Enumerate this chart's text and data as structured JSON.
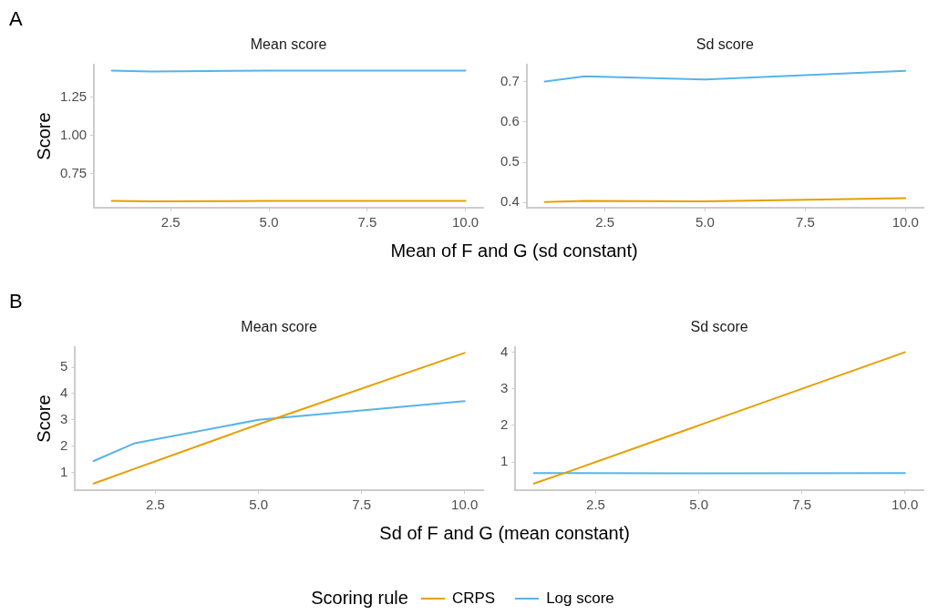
{
  "chart_data": [
    {
      "type": "line",
      "title": "Mean score",
      "xlabel": "Mean of F and G (sd constant)",
      "ylabel": "Score",
      "annotations": [
        "A"
      ],
      "legend": "bottom",
      "legend_title": "Scoring rule",
      "grid": false,
      "marker": "none",
      "line_style": "solid",
      "xlim": [
        0.55,
        10.45
      ],
      "xticks": [
        {
          "value": 2.5,
          "label": "2.5"
        },
        {
          "value": 5,
          "label": "5.0"
        },
        {
          "value": 7.5,
          "label": "7.5"
        },
        {
          "value": 10,
          "label": "10.0"
        }
      ],
      "ylim": [
        0.526,
        1.462
      ],
      "yticks": [
        {
          "value": 0.75,
          "label": "0.75"
        },
        {
          "value": 1,
          "label": "1.00"
        },
        {
          "value": 1.25,
          "label": "1.25"
        }
      ],
      "x": [
        1,
        2,
        5,
        10
      ],
      "series": [
        {
          "name": "CRPS",
          "color": "#e69f00",
          "values": [
            0.571,
            0.567,
            0.571,
            0.571
          ]
        },
        {
          "name": "Log score",
          "color": "#56b4e9",
          "values": [
            1.423,
            1.418,
            1.423,
            1.423
          ]
        }
      ]
    },
    {
      "type": "line",
      "title": "Sd score",
      "grid": false,
      "marker": "none",
      "line_style": "solid",
      "xlim": [
        0.55,
        10.45
      ],
      "xticks": [
        {
          "value": 2.5,
          "label": "2.5"
        },
        {
          "value": 5,
          "label": "5.0"
        },
        {
          "value": 7.5,
          "label": "7.5"
        },
        {
          "value": 10,
          "label": "10.0"
        }
      ],
      "ylim": [
        0.387,
        0.742
      ],
      "yticks": [
        0.4,
        0.5,
        0.6,
        0.7
      ],
      "x": [
        1,
        2,
        5,
        10
      ],
      "series": [
        {
          "color": "#e69f00",
          "values": [
            0.401,
            0.404,
            0.403,
            0.411
          ]
        },
        {
          "color": "#56b4e9",
          "values": [
            0.7,
            0.713,
            0.705,
            0.727
          ]
        }
      ]
    },
    {
      "type": "line",
      "title": "Mean score",
      "xlabel": "Sd of F and G (mean constant)",
      "ylabel": "Score",
      "annotations": [
        "B"
      ],
      "grid": false,
      "marker": "none",
      "line_style": "solid",
      "xlim": [
        0.55,
        10.45
      ],
      "xticks": [
        {
          "value": 2.5,
          "label": "2.5"
        },
        {
          "value": 5,
          "label": "5.0"
        },
        {
          "value": 7.5,
          "label": "7.5"
        },
        {
          "value": 10,
          "label": "10.0"
        }
      ],
      "ylim": [
        0.32,
        5.77
      ],
      "yticks": [
        1,
        2,
        3,
        4,
        5
      ],
      "x": [
        1,
        2,
        5,
        10
      ],
      "series": [
        {
          "color": "#e69f00",
          "values": [
            0.57,
            1.14,
            2.83,
            5.55
          ]
        },
        {
          "color": "#56b4e9",
          "values": [
            1.43,
            2.11,
            3.0,
            3.71
          ]
        }
      ]
    },
    {
      "type": "line",
      "title": "Sd score",
      "grid": false,
      "marker": "none",
      "line_style": "solid",
      "xlim": [
        0.55,
        10.45
      ],
      "xticks": [
        {
          "value": 2.5,
          "label": "2.5"
        },
        {
          "value": 5,
          "label": "5.0"
        },
        {
          "value": 7.5,
          "label": "7.5"
        },
        {
          "value": 10,
          "label": "10.0"
        }
      ],
      "ylim": [
        0.23,
        4.14
      ],
      "yticks": [
        1,
        2,
        3,
        4
      ],
      "x": [
        1,
        2,
        5,
        10
      ],
      "series": [
        {
          "color": "#e69f00",
          "values": [
            0.41,
            0.8,
            2.0,
            4.0
          ]
        },
        {
          "color": "#56b4e9",
          "values": [
            0.7,
            0.7,
            0.69,
            0.7
          ]
        }
      ]
    }
  ]
}
